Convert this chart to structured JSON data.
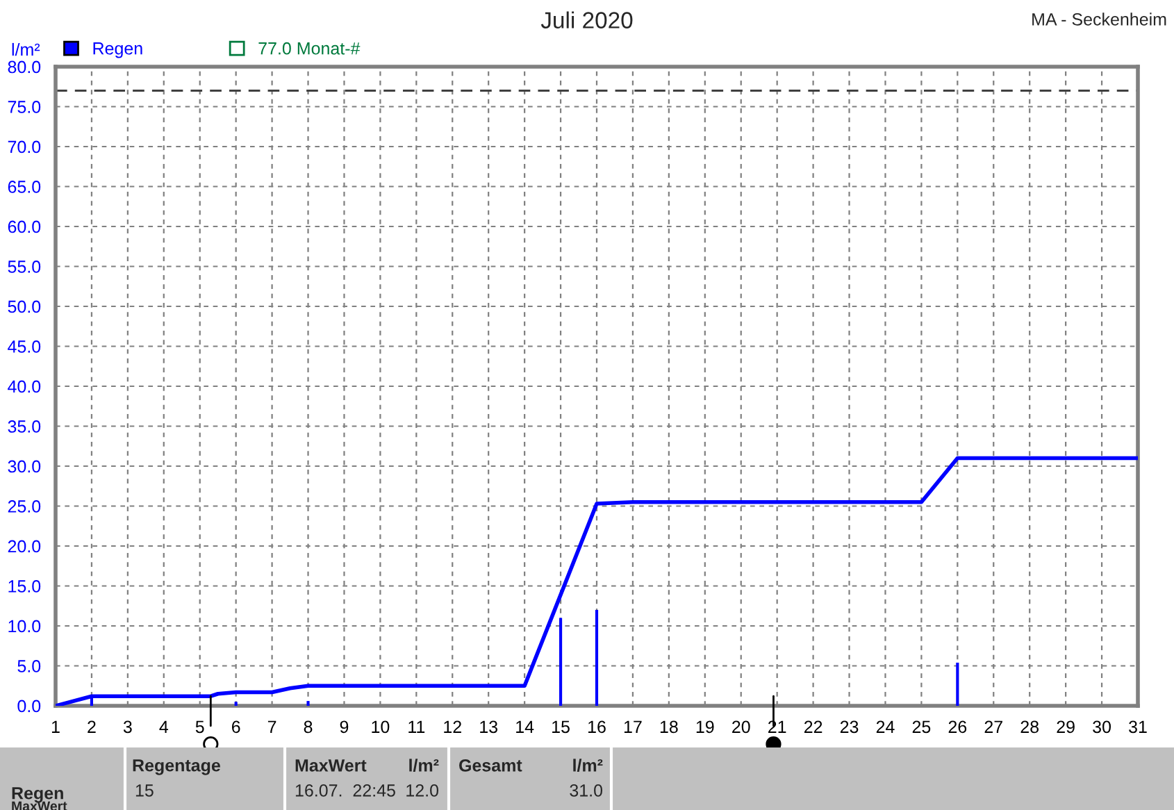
{
  "chart_data": {
    "type": "line",
    "title": "Juli 2020",
    "ylabel": "l/m²",
    "xlim": [
      1,
      31
    ],
    "xticks": [
      1,
      2,
      3,
      4,
      5,
      6,
      7,
      8,
      9,
      10,
      11,
      12,
      13,
      14,
      15,
      16,
      17,
      18,
      19,
      20,
      21,
      22,
      23,
      24,
      25,
      26,
      27,
      28,
      29,
      30,
      31
    ],
    "ylim": [
      0,
      80
    ],
    "yticks": [
      {
        "value": 0,
        "label": "0.0"
      },
      {
        "value": 5,
        "label": "5.0"
      },
      {
        "value": 10,
        "label": "10.0"
      },
      {
        "value": 15,
        "label": "15.0"
      },
      {
        "value": 20,
        "label": "20.0"
      },
      {
        "value": 25,
        "label": "25.0"
      },
      {
        "value": 30,
        "label": "30.0"
      },
      {
        "value": 35,
        "label": "35.0"
      },
      {
        "value": 40,
        "label": "40.0"
      },
      {
        "value": 45,
        "label": "45.0"
      },
      {
        "value": 50,
        "label": "50.0"
      },
      {
        "value": 55,
        "label": "55.0"
      },
      {
        "value": 60,
        "label": "60.0"
      },
      {
        "value": 65,
        "label": "65.0"
      },
      {
        "value": 70,
        "label": "70.0"
      },
      {
        "value": 75,
        "label": "75.0"
      },
      {
        "value": 80,
        "label": "80.0"
      }
    ],
    "series": [
      {
        "name": "Regen",
        "type": "bar",
        "color": "#0000ff",
        "x": [
          2,
          6,
          8,
          15,
          16,
          26
        ],
        "values": [
          1.2,
          0.5,
          0.6,
          11.0,
          12.0,
          5.4
        ]
      },
      {
        "color": "#0000ff",
        "x": [
          1,
          2,
          5.3,
          5.5,
          6,
          7,
          7.5,
          8,
          14,
          16,
          17,
          25,
          26,
          31
        ],
        "values": [
          0,
          1.2,
          1.2,
          1.5,
          1.7,
          1.7,
          2.2,
          2.5,
          2.5,
          25.3,
          25.5,
          25.5,
          31.0,
          31.0
        ]
      }
    ],
    "ref_lines": [
      {
        "axis": "y",
        "value": 77,
        "label": "77.0 Monat-#",
        "color": "#404040",
        "line_style": "dashed"
      }
    ],
    "annotations": [
      "MA - Seckenheim",
      "Regen",
      "MaxWert",
      "Regentage",
      "15",
      "MaxWert",
      "l/m²",
      "16.07.  22:45",
      "12.0",
      "Gesamt",
      "l/m²",
      "31.0"
    ],
    "grid": true,
    "legend": "top left",
    "marker": "none",
    "line_style": "solid"
  }
}
